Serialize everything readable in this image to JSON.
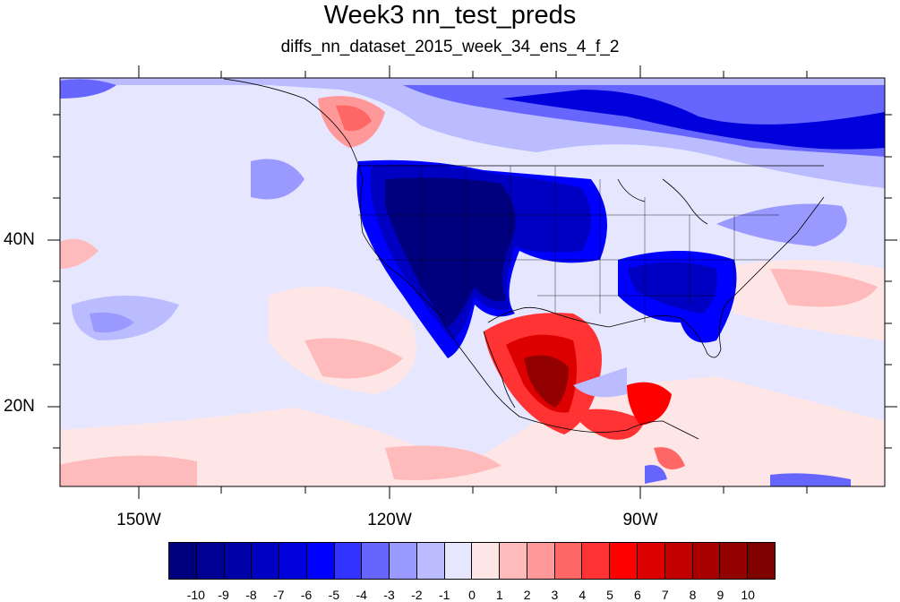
{
  "title": "Week3 nn_test_preds",
  "subtitle": "diffs_nn_dataset_2015_week_34_ens_4_f_2",
  "map": {
    "projection": "cylindrical-equidistant",
    "lon_range": [
      -160,
      -62
    ],
    "lat_range": [
      11,
      60
    ],
    "lon_ticks": [
      "150W",
      "120W",
      "90W"
    ],
    "lat_ticks": [
      "40N",
      "20N"
    ]
  },
  "colorbar": {
    "labels": [
      "-10",
      "-9",
      "-8",
      "-7",
      "-6",
      "-5",
      "-4",
      "-3",
      "-2",
      "-1",
      "0",
      "1",
      "2",
      "3",
      "4",
      "5",
      "6",
      "7",
      "8",
      "9",
      "10"
    ],
    "colors": [
      "#00007f",
      "#000092",
      "#0000a8",
      "#0000c2",
      "#0000dd",
      "#0000ff",
      "#3333ff",
      "#6666ff",
      "#9999ff",
      "#bbbbff",
      "#e6e6ff",
      "#ffe6e6",
      "#ffbbbb",
      "#ff9999",
      "#ff6666",
      "#ff3333",
      "#ff0000",
      "#dd0000",
      "#c20000",
      "#a80000",
      "#920000",
      "#7f0000"
    ]
  }
}
